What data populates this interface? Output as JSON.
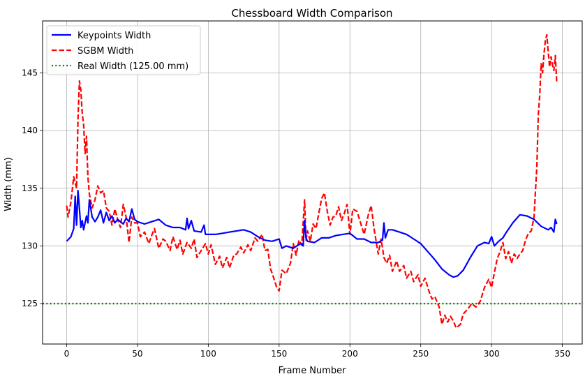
{
  "chart_data": {
    "type": "line",
    "title": "Chessboard Width Comparison",
    "xlabel": "Frame Number",
    "ylabel": "Width (mm)",
    "xlim": [
      -17,
      364
    ],
    "ylim": [
      121.5,
      149.5
    ],
    "xticks": [
      0,
      50,
      100,
      150,
      200,
      250,
      300,
      350
    ],
    "yticks": [
      125,
      130,
      135,
      140,
      145
    ],
    "grid": true,
    "legend_position": "top-left",
    "series": [
      {
        "name": "Keypoints Width",
        "color": "#0000ff",
        "style": "solid",
        "points": [
          [
            0,
            130.4
          ],
          [
            3,
            130.8
          ],
          [
            5,
            131.5
          ],
          [
            6,
            134.3
          ],
          [
            7,
            131.8
          ],
          [
            8,
            134.8
          ],
          [
            9,
            133.2
          ],
          [
            10,
            131.6
          ],
          [
            11,
            132.2
          ],
          [
            12,
            131.4
          ],
          [
            14,
            132.6
          ],
          [
            15,
            132.0
          ],
          [
            16,
            134.0
          ],
          [
            18,
            132.5
          ],
          [
            20,
            132.1
          ],
          [
            22,
            132.5
          ],
          [
            24,
            133.1
          ],
          [
            26,
            132.0
          ],
          [
            28,
            132.9
          ],
          [
            30,
            132.2
          ],
          [
            32,
            132.6
          ],
          [
            34,
            132.0
          ],
          [
            36,
            132.3
          ],
          [
            38,
            132.1
          ],
          [
            40,
            131.9
          ],
          [
            42,
            132.4
          ],
          [
            44,
            132.1
          ],
          [
            46,
            133.2
          ],
          [
            48,
            132.3
          ],
          [
            50,
            132.1
          ],
          [
            55,
            131.9
          ],
          [
            60,
            132.1
          ],
          [
            65,
            132.3
          ],
          [
            70,
            131.8
          ],
          [
            75,
            131.6
          ],
          [
            80,
            131.6
          ],
          [
            84,
            131.4
          ],
          [
            85,
            132.4
          ],
          [
            86,
            131.5
          ],
          [
            88,
            132.2
          ],
          [
            90,
            131.3
          ],
          [
            95,
            131.2
          ],
          [
            97,
            131.8
          ],
          [
            98,
            131.0
          ],
          [
            100,
            131.0
          ],
          [
            105,
            131.0
          ],
          [
            110,
            131.1
          ],
          [
            115,
            131.2
          ],
          [
            120,
            131.3
          ],
          [
            125,
            131.4
          ],
          [
            130,
            131.2
          ],
          [
            135,
            130.8
          ],
          [
            140,
            130.5
          ],
          [
            145,
            130.4
          ],
          [
            150,
            130.6
          ],
          [
            152,
            129.8
          ],
          [
            155,
            130.0
          ],
          [
            160,
            129.8
          ],
          [
            165,
            130.2
          ],
          [
            167,
            130.0
          ],
          [
            168,
            132.2
          ],
          [
            169,
            130.7
          ],
          [
            170,
            130.4
          ],
          [
            175,
            130.3
          ],
          [
            180,
            130.7
          ],
          [
            185,
            130.7
          ],
          [
            190,
            130.9
          ],
          [
            195,
            131.0
          ],
          [
            200,
            131.1
          ],
          [
            205,
            130.6
          ],
          [
            210,
            130.6
          ],
          [
            215,
            130.3
          ],
          [
            220,
            130.3
          ],
          [
            223,
            130.5
          ],
          [
            224,
            132.0
          ],
          [
            225,
            130.7
          ],
          [
            227,
            131.4
          ],
          [
            230,
            131.4
          ],
          [
            235,
            131.2
          ],
          [
            240,
            131.0
          ],
          [
            245,
            130.6
          ],
          [
            250,
            130.2
          ],
          [
            255,
            129.5
          ],
          [
            260,
            128.8
          ],
          [
            265,
            128.0
          ],
          [
            270,
            127.5
          ],
          [
            273,
            127.3
          ],
          [
            276,
            127.4
          ],
          [
            280,
            127.9
          ],
          [
            285,
            129.0
          ],
          [
            290,
            130.0
          ],
          [
            295,
            130.3
          ],
          [
            298,
            130.2
          ],
          [
            300,
            130.8
          ],
          [
            302,
            130.0
          ],
          [
            305,
            130.4
          ],
          [
            308,
            130.7
          ],
          [
            310,
            131.1
          ],
          [
            315,
            132.0
          ],
          [
            320,
            132.7
          ],
          [
            325,
            132.6
          ],
          [
            330,
            132.3
          ],
          [
            335,
            131.7
          ],
          [
            340,
            131.4
          ],
          [
            342,
            131.6
          ],
          [
            344,
            131.2
          ],
          [
            345,
            132.3
          ],
          [
            346,
            131.9
          ]
        ]
      },
      {
        "name": "SGBM Width",
        "color": "#ff0000",
        "style": "dashed",
        "points": [
          [
            0,
            133.5
          ],
          [
            1,
            132.5
          ],
          [
            3,
            133.8
          ],
          [
            5,
            136.0
          ],
          [
            7,
            135.0
          ],
          [
            8,
            141.0
          ],
          [
            9,
            144.3
          ],
          [
            10,
            143.5
          ],
          [
            11,
            141.5
          ],
          [
            12,
            140.5
          ],
          [
            13,
            138.0
          ],
          [
            14,
            139.5
          ],
          [
            15,
            136.0
          ],
          [
            16,
            134.5
          ],
          [
            18,
            133.3
          ],
          [
            20,
            134.0
          ],
          [
            22,
            135.2
          ],
          [
            24,
            134.6
          ],
          [
            26,
            134.8
          ],
          [
            28,
            133.3
          ],
          [
            30,
            133.0
          ],
          [
            32,
            131.8
          ],
          [
            34,
            133.2
          ],
          [
            36,
            132.3
          ],
          [
            38,
            131.6
          ],
          [
            40,
            133.6
          ],
          [
            42,
            132.5
          ],
          [
            44,
            130.3
          ],
          [
            46,
            132.5
          ],
          [
            48,
            132.0
          ],
          [
            50,
            132.0
          ],
          [
            52,
            130.8
          ],
          [
            55,
            131.2
          ],
          [
            58,
            130.2
          ],
          [
            60,
            130.9
          ],
          [
            62,
            131.5
          ],
          [
            65,
            129.8
          ],
          [
            68,
            130.6
          ],
          [
            70,
            130.4
          ],
          [
            73,
            129.6
          ],
          [
            75,
            130.8
          ],
          [
            78,
            129.7
          ],
          [
            80,
            130.5
          ],
          [
            82,
            129.3
          ],
          [
            85,
            130.3
          ],
          [
            88,
            129.8
          ],
          [
            90,
            130.6
          ],
          [
            92,
            129.0
          ],
          [
            95,
            129.6
          ],
          [
            98,
            130.2
          ],
          [
            100,
            129.3
          ],
          [
            102,
            130.1
          ],
          [
            105,
            128.4
          ],
          [
            108,
            129.1
          ],
          [
            110,
            128.1
          ],
          [
            113,
            129.0
          ],
          [
            115,
            128.1
          ],
          [
            118,
            129.2
          ],
          [
            120,
            129.3
          ],
          [
            123,
            129.9
          ],
          [
            125,
            129.4
          ],
          [
            128,
            130.1
          ],
          [
            130,
            129.6
          ],
          [
            133,
            130.7
          ],
          [
            135,
            130.4
          ],
          [
            138,
            131.0
          ],
          [
            140,
            129.6
          ],
          [
            142,
            129.7
          ],
          [
            144,
            128.0
          ],
          [
            146,
            127.3
          ],
          [
            148,
            126.5
          ],
          [
            150,
            126.1
          ],
          [
            152,
            127.9
          ],
          [
            155,
            127.6
          ],
          [
            158,
            128.5
          ],
          [
            160,
            130.2
          ],
          [
            162,
            129.2
          ],
          [
            164,
            130.5
          ],
          [
            166,
            130.1
          ],
          [
            168,
            134.0
          ],
          [
            169,
            130.5
          ],
          [
            170,
            131.3
          ],
          [
            172,
            130.4
          ],
          [
            174,
            131.9
          ],
          [
            176,
            131.5
          ],
          [
            178,
            132.8
          ],
          [
            180,
            134.1
          ],
          [
            182,
            134.6
          ],
          [
            184,
            133.0
          ],
          [
            186,
            131.8
          ],
          [
            188,
            132.5
          ],
          [
            190,
            132.6
          ],
          [
            192,
            133.4
          ],
          [
            194,
            132.2
          ],
          [
            196,
            132.8
          ],
          [
            198,
            133.6
          ],
          [
            200,
            131.0
          ],
          [
            202,
            133.2
          ],
          [
            205,
            133.0
          ],
          [
            208,
            131.8
          ],
          [
            210,
            131.0
          ],
          [
            213,
            132.7
          ],
          [
            215,
            133.5
          ],
          [
            217,
            131.5
          ],
          [
            220,
            129.3
          ],
          [
            222,
            130.6
          ],
          [
            224,
            129.0
          ],
          [
            226,
            128.5
          ],
          [
            228,
            129.2
          ],
          [
            230,
            127.8
          ],
          [
            233,
            128.7
          ],
          [
            235,
            127.8
          ],
          [
            238,
            128.3
          ],
          [
            240,
            127.2
          ],
          [
            243,
            127.8
          ],
          [
            245,
            126.9
          ],
          [
            248,
            127.5
          ],
          [
            250,
            126.5
          ],
          [
            253,
            127.2
          ],
          [
            256,
            126.0
          ],
          [
            258,
            125.4
          ],
          [
            260,
            125.6
          ],
          [
            263,
            124.7
          ],
          [
            265,
            123.2
          ],
          [
            267,
            124.0
          ],
          [
            269,
            123.4
          ],
          [
            271,
            123.9
          ],
          [
            273,
            123.5
          ],
          [
            275,
            122.9
          ],
          [
            278,
            123.2
          ],
          [
            280,
            124.1
          ],
          [
            283,
            124.5
          ],
          [
            286,
            125.0
          ],
          [
            289,
            124.7
          ],
          [
            292,
            125.2
          ],
          [
            295,
            126.4
          ],
          [
            298,
            127.1
          ],
          [
            300,
            126.4
          ],
          [
            302,
            127.7
          ],
          [
            304,
            128.9
          ],
          [
            306,
            129.5
          ],
          [
            308,
            130.3
          ],
          [
            310,
            128.9
          ],
          [
            312,
            129.5
          ],
          [
            314,
            128.5
          ],
          [
            316,
            129.3
          ],
          [
            318,
            128.9
          ],
          [
            320,
            129.3
          ],
          [
            322,
            129.6
          ],
          [
            324,
            130.5
          ],
          [
            326,
            131.1
          ],
          [
            328,
            131.3
          ],
          [
            330,
            132.5
          ],
          [
            332,
            137.0
          ],
          [
            333,
            141.4
          ],
          [
            334,
            143.0
          ],
          [
            335,
            145.8
          ],
          [
            336,
            145.0
          ],
          [
            337,
            146.6
          ],
          [
            338,
            147.8
          ],
          [
            339,
            148.3
          ],
          [
            340,
            146.8
          ],
          [
            341,
            145.5
          ],
          [
            342,
            146.4
          ],
          [
            343,
            145.7
          ],
          [
            344,
            145.2
          ],
          [
            345,
            146.5
          ],
          [
            346,
            144.2
          ]
        ]
      },
      {
        "name": "Real Width (125.00 mm)",
        "color": "#008000",
        "style": "dotted",
        "points": [
          [
            -17,
            125
          ],
          [
            364,
            125
          ]
        ]
      }
    ]
  }
}
